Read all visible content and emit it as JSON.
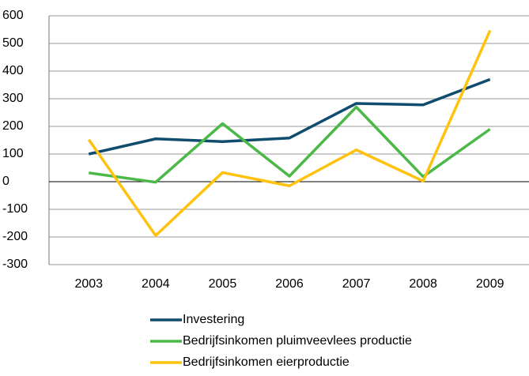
{
  "chart_data": {
    "type": "line",
    "categories": [
      "2003",
      "2004",
      "2005",
      "2006",
      "2007",
      "2008",
      "2009"
    ],
    "series": [
      {
        "name": "Investering",
        "color": "#0f4c6e",
        "values": [
          100,
          155,
          145,
          158,
          283,
          278,
          370
        ]
      },
      {
        "name": "Bedrijfsinkomen pluimveevlees productie",
        "color": "#4cb848",
        "values": [
          32,
          -2,
          210,
          20,
          270,
          18,
          190
        ]
      },
      {
        "name": "Bedrijfsinkomen eierproductie",
        "color": "#ffc20e",
        "values": [
          152,
          -195,
          33,
          -15,
          115,
          2,
          547
        ]
      }
    ],
    "ylim": [
      -300,
      600
    ],
    "yticks": [
      -300,
      -200,
      -100,
      0,
      100,
      200,
      300,
      400,
      500,
      600
    ],
    "grid": true,
    "legend": "bottom"
  }
}
